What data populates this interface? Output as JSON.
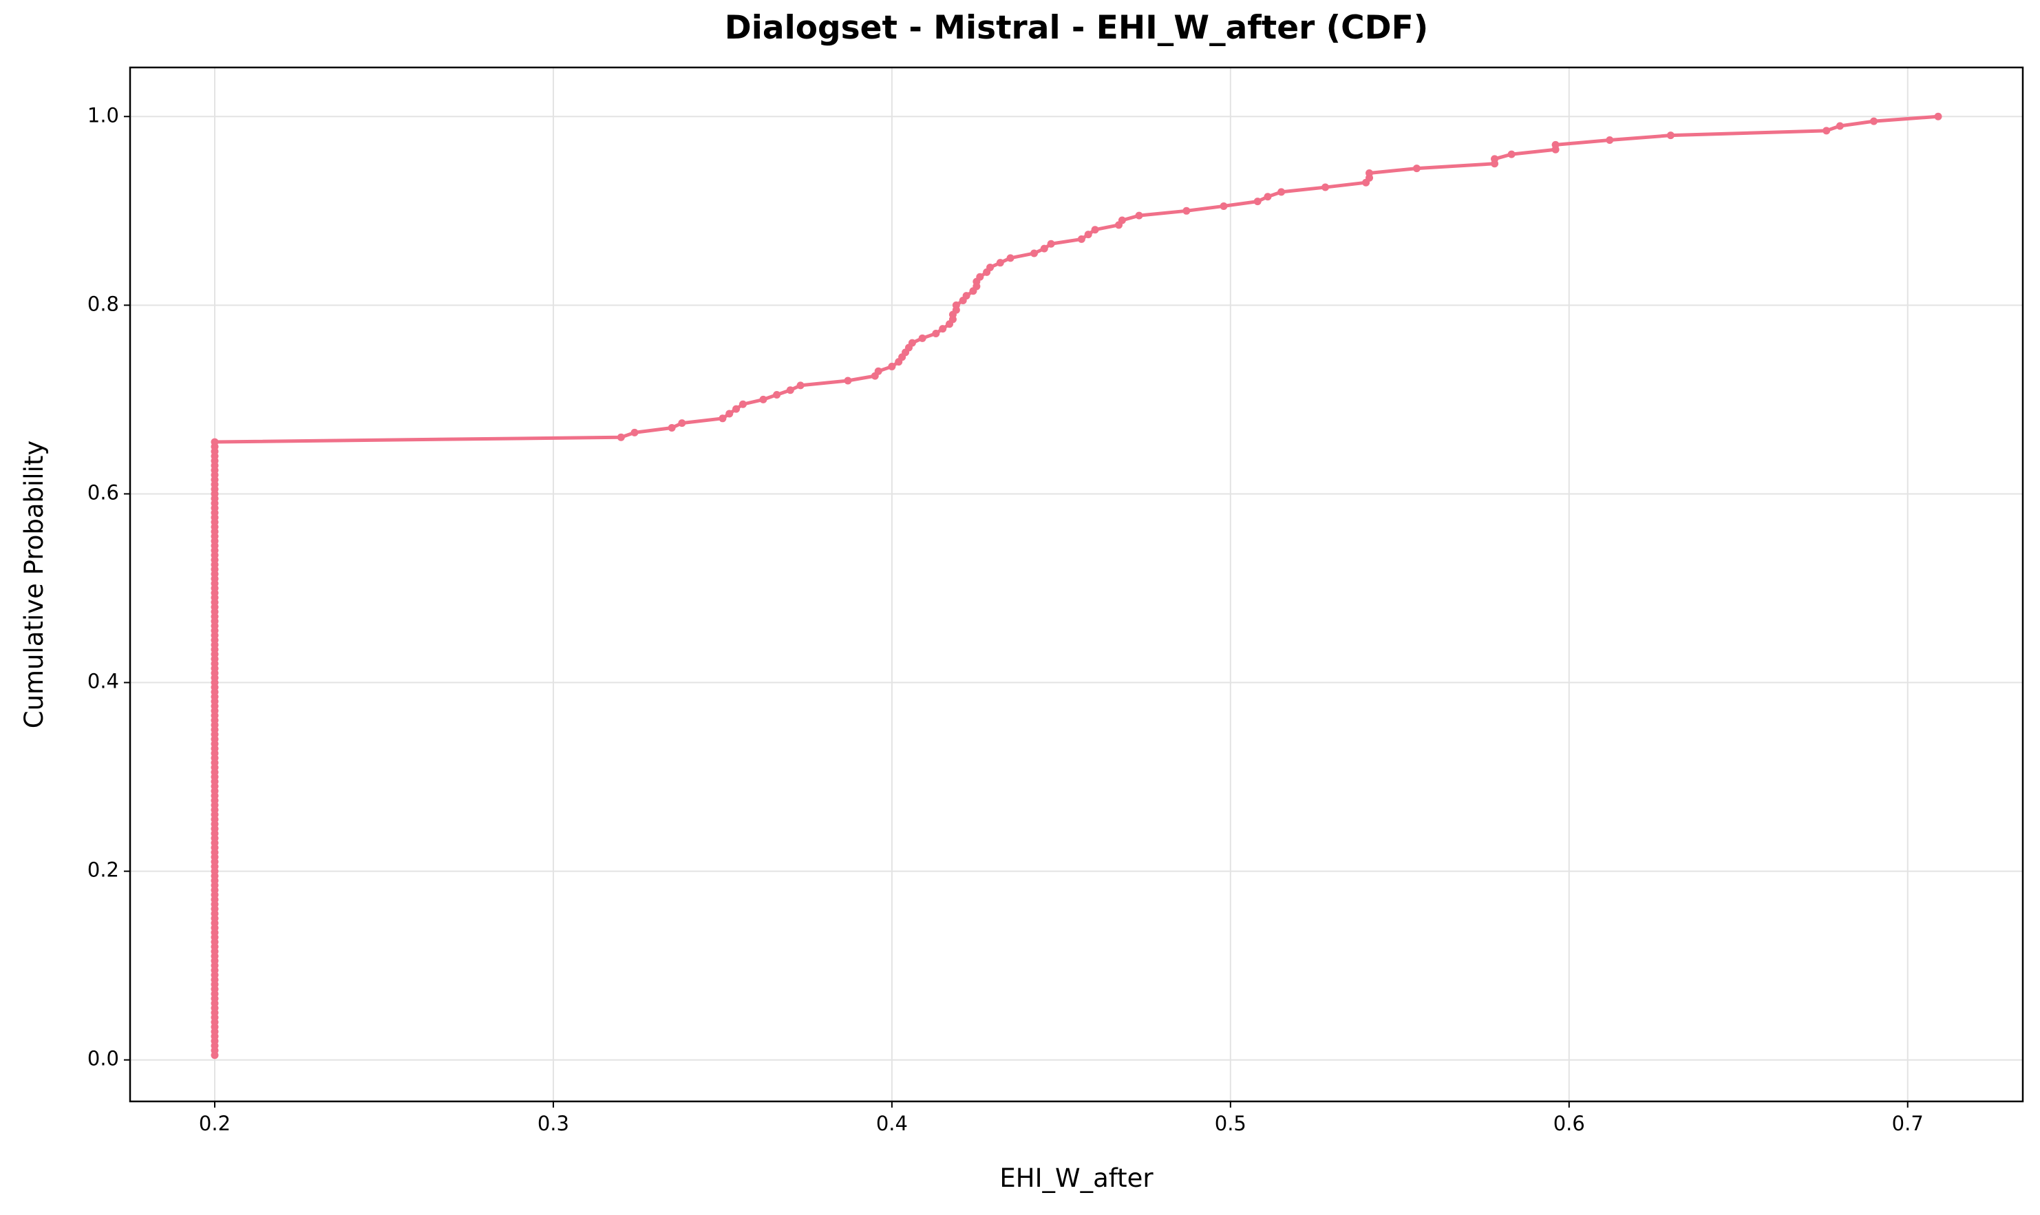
{
  "chart_data": {
    "type": "line",
    "title": "Dialogset - Mistral - EHI_W_after (CDF)",
    "x_label": "EHI_W_after",
    "y_label": "Cumulative Probability",
    "color": "#f07089",
    "grid": true,
    "xlim": [
      0.175,
      0.734
    ],
    "ylim": [
      -0.044,
      1.052
    ],
    "xticks": [
      0.2,
      0.3,
      0.4,
      0.5,
      0.6,
      0.7
    ],
    "yticks": [
      {
        "value": 0,
        "label": "0.0"
      },
      0.2,
      0.4,
      0.6,
      0.8,
      {
        "value": 1,
        "label": "1.0"
      }
    ],
    "x": [
      0.2,
      0.2,
      0.2,
      0.2,
      0.2,
      0.2,
      0.2,
      0.2,
      0.2,
      0.2,
      0.2,
      0.2,
      0.2,
      0.2,
      0.2,
      0.2,
      0.2,
      0.2,
      0.2,
      0.2,
      0.2,
      0.2,
      0.2,
      0.2,
      0.2,
      0.2,
      0.2,
      0.2,
      0.2,
      0.2,
      0.2,
      0.2,
      0.2,
      0.2,
      0.2,
      0.2,
      0.2,
      0.2,
      0.2,
      0.2,
      0.2,
      0.2,
      0.2,
      0.2,
      0.2,
      0.2,
      0.2,
      0.2,
      0.2,
      0.2,
      0.2,
      0.2,
      0.2,
      0.2,
      0.2,
      0.2,
      0.2,
      0.2,
      0.2,
      0.2,
      0.2,
      0.2,
      0.2,
      0.2,
      0.2,
      0.2,
      0.2,
      0.2,
      0.2,
      0.2,
      0.2,
      0.2,
      0.2,
      0.2,
      0.2,
      0.2,
      0.2,
      0.2,
      0.2,
      0.2,
      0.2,
      0.2,
      0.2,
      0.2,
      0.2,
      0.2,
      0.2,
      0.2,
      0.2,
      0.2,
      0.2,
      0.2,
      0.2,
      0.2,
      0.2,
      0.2,
      0.2,
      0.2,
      0.2,
      0.2,
      0.2,
      0.2,
      0.2,
      0.2,
      0.2,
      0.2,
      0.2,
      0.2,
      0.2,
      0.2,
      0.2,
      0.2,
      0.2,
      0.2,
      0.2,
      0.2,
      0.2,
      0.2,
      0.2,
      0.2,
      0.2,
      0.2,
      0.2,
      0.2,
      0.2,
      0.2,
      0.2,
      0.2,
      0.2,
      0.2,
      0.2,
      0.32,
      0.324,
      0.335,
      0.338,
      0.35,
      0.352,
      0.354,
      0.356,
      0.362,
      0.366,
      0.37,
      0.373,
      0.387,
      0.395,
      0.396,
      0.4,
      0.402,
      0.403,
      0.404,
      0.405,
      0.406,
      0.409,
      0.413,
      0.415,
      0.417,
      0.418,
      0.418,
      0.419,
      0.419,
      0.421,
      0.422,
      0.424,
      0.425,
      0.425,
      0.426,
      0.428,
      0.429,
      0.432,
      0.435,
      0.442,
      0.445,
      0.447,
      0.456,
      0.458,
      0.46,
      0.467,
      0.468,
      0.473,
      0.487,
      0.498,
      0.508,
      0.511,
      0.515,
      0.528,
      0.54,
      0.541,
      0.541,
      0.555,
      0.578,
      0.578,
      0.583,
      0.596,
      0.596,
      0.612,
      0.63,
      0.676,
      0.68,
      0.69,
      0.709
    ],
    "values": [
      0.005,
      0.01,
      0.015,
      0.02,
      0.025,
      0.03,
      0.035,
      0.04,
      0.045,
      0.05,
      0.055,
      0.06,
      0.065,
      0.07,
      0.075,
      0.08,
      0.085,
      0.09,
      0.095,
      0.1,
      0.105,
      0.11,
      0.115,
      0.12,
      0.125,
      0.13,
      0.135,
      0.14,
      0.145,
      0.15,
      0.155,
      0.16,
      0.165,
      0.17,
      0.175,
      0.18,
      0.185,
      0.19,
      0.195,
      0.2,
      0.205,
      0.21,
      0.215,
      0.22,
      0.225,
      0.23,
      0.235,
      0.24,
      0.245,
      0.25,
      0.255,
      0.26,
      0.265,
      0.27,
      0.275,
      0.28,
      0.285,
      0.29,
      0.295,
      0.3,
      0.305,
      0.31,
      0.315,
      0.32,
      0.325,
      0.33,
      0.335,
      0.34,
      0.345,
      0.35,
      0.355,
      0.36,
      0.365,
      0.37,
      0.375,
      0.38,
      0.385,
      0.39,
      0.395,
      0.4,
      0.405,
      0.41,
      0.415,
      0.42,
      0.425,
      0.43,
      0.435,
      0.44,
      0.445,
      0.45,
      0.455,
      0.46,
      0.465,
      0.47,
      0.475,
      0.48,
      0.485,
      0.49,
      0.495,
      0.5,
      0.505,
      0.51,
      0.515,
      0.52,
      0.525,
      0.53,
      0.535,
      0.54,
      0.545,
      0.55,
      0.555,
      0.56,
      0.565,
      0.57,
      0.575,
      0.58,
      0.585,
      0.59,
      0.595,
      0.6,
      0.605,
      0.61,
      0.615,
      0.62,
      0.625,
      0.63,
      0.635,
      0.64,
      0.645,
      0.65,
      0.655,
      0.66,
      0.665,
      0.67,
      0.675,
      0.68,
      0.685,
      0.69,
      0.695,
      0.7,
      0.705,
      0.71,
      0.715,
      0.72,
      0.725,
      0.73,
      0.735,
      0.74,
      0.745,
      0.75,
      0.755,
      0.76,
      0.765,
      0.77,
      0.775,
      0.78,
      0.785,
      0.79,
      0.795,
      0.8,
      0.805,
      0.81,
      0.815,
      0.82,
      0.825,
      0.83,
      0.835,
      0.84,
      0.845,
      0.85,
      0.855,
      0.86,
      0.865,
      0.87,
      0.875,
      0.88,
      0.885,
      0.89,
      0.895,
      0.9,
      0.905,
      0.91,
      0.915,
      0.92,
      0.925,
      0.93,
      0.935,
      0.94,
      0.945,
      0.95,
      0.955,
      0.96,
      0.965,
      0.97,
      0.975,
      0.98,
      0.985,
      0.99,
      0.995,
      1
    ]
  }
}
